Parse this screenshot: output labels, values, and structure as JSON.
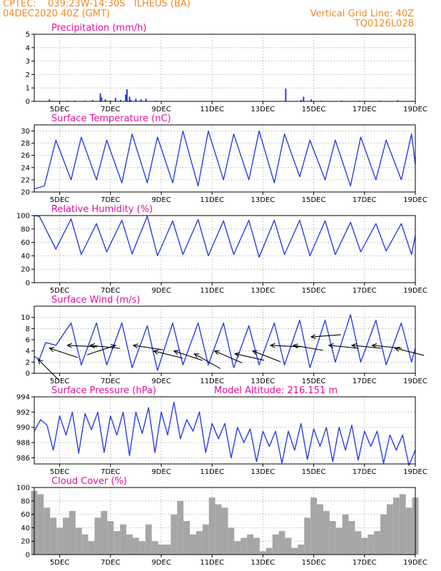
{
  "header": {
    "line1_left": "CPTEC:    039:23W-14:30S   ILHEUS (BA)",
    "line2_left": "04DEC2020 40Z (GMT)",
    "line1_right": "Vertical Grid Line: 40Z",
    "line2_right": "TQ0126L028"
  },
  "colors": {
    "header": "#f08a24",
    "title": "#e0109c",
    "line": "#2b3fe0",
    "cloud": "#a6a6a6",
    "wind_arrow": "#000000"
  },
  "x_axis": {
    "unit": "day of December 2020",
    "range": [
      4.0,
      19.0
    ],
    "tick_values": [
      5,
      7,
      9,
      11,
      13,
      15,
      17,
      19
    ],
    "tick_labels": [
      "5DEC",
      "7DEC",
      "9DEC",
      "11DEC",
      "13DEC",
      "15DEC",
      "17DEC",
      "19DEC"
    ]
  },
  "chart_data": [
    {
      "id": "precip",
      "type": "bar",
      "title": "Precipitation (mm/h)",
      "ylim": [
        0,
        5
      ],
      "yticks": [
        0,
        1,
        2,
        3,
        4,
        5
      ],
      "x": [
        4.6,
        5.3,
        5.6,
        6.0,
        6.3,
        6.6,
        6.65,
        6.8,
        7.0,
        7.2,
        7.4,
        7.6,
        7.65,
        7.75,
        7.8,
        8.0,
        8.2,
        8.4,
        8.8,
        13.9,
        14.5,
        14.6,
        14.9,
        15.3,
        16.1,
        16.8,
        17.6,
        18.3
      ],
      "values": [
        0.15,
        0.05,
        0.06,
        0.05,
        0.1,
        0.6,
        0.3,
        0.15,
        0.05,
        0.25,
        0.1,
        0.5,
        0.9,
        0.35,
        0.1,
        0.2,
        0.15,
        0.2,
        0.05,
        0.95,
        0.1,
        0.35,
        0.15,
        0.05,
        0.05,
        0.05,
        0.05,
        0.08
      ]
    },
    {
      "id": "temp",
      "type": "line",
      "title": "Surface Temperature (nC)",
      "ylim": [
        20,
        31
      ],
      "yticks": [
        20,
        22,
        24,
        26,
        28,
        30
      ],
      "series": [
        {
          "x": [
            4.0,
            4.4,
            4.85,
            5.45,
            5.85,
            6.45,
            6.85,
            7.45,
            7.85,
            8.45,
            8.85,
            9.45,
            9.85,
            10.45,
            10.85,
            11.45,
            11.85,
            12.45,
            12.85,
            13.45,
            13.85,
            14.45,
            14.85,
            15.45,
            15.85,
            16.45,
            16.85,
            17.45,
            17.85,
            18.45,
            18.85,
            19.0
          ],
          "values": [
            20.5,
            21.0,
            28.5,
            22.0,
            29.0,
            22.0,
            28.5,
            21.5,
            29.5,
            21.5,
            29.0,
            21.5,
            30.0,
            21.0,
            30.0,
            22.0,
            29.5,
            22.0,
            30.0,
            21.5,
            29.5,
            22.5,
            28.5,
            22.0,
            28.5,
            21.0,
            29.0,
            22.0,
            28.5,
            22.0,
            29.5,
            24.5
          ]
        }
      ]
    },
    {
      "id": "rh",
      "type": "line",
      "title": "Relative Humidity (%)",
      "ylim": [
        0,
        100
      ],
      "yticks": [
        0,
        20,
        40,
        60,
        80,
        100
      ],
      "series": [
        {
          "x": [
            4.0,
            4.2,
            4.85,
            5.45,
            5.85,
            6.45,
            6.85,
            7.45,
            7.85,
            8.45,
            8.85,
            9.45,
            9.85,
            10.45,
            10.85,
            11.45,
            11.85,
            12.45,
            12.85,
            13.45,
            13.85,
            14.45,
            14.85,
            15.45,
            15.85,
            16.45,
            16.85,
            17.45,
            17.85,
            18.45,
            18.85,
            19.0
          ],
          "values": [
            100,
            99,
            50,
            95,
            42,
            88,
            46,
            93,
            43,
            99,
            40,
            92,
            42,
            94,
            40,
            92,
            42,
            93,
            38,
            93,
            42,
            93,
            40,
            92,
            42,
            90,
            46,
            88,
            47,
            88,
            42,
            70
          ]
        }
      ]
    },
    {
      "id": "wind",
      "type": "line",
      "title": "Surface Wind (m/s)",
      "ylim": [
        0,
        12
      ],
      "yticks": [
        0,
        2,
        4,
        6,
        8,
        10
      ],
      "series": [
        {
          "x": [
            4.0,
            4.2,
            4.45,
            4.85,
            5.45,
            5.85,
            6.45,
            6.85,
            7.45,
            7.85,
            8.45,
            8.85,
            9.45,
            9.85,
            10.45,
            10.85,
            11.45,
            11.85,
            12.45,
            12.85,
            13.45,
            13.85,
            14.45,
            14.85,
            15.45,
            15.85,
            16.45,
            16.85,
            17.45,
            17.85,
            18.45,
            18.85,
            19.0
          ],
          "values": [
            3.0,
            2.5,
            5.5,
            5.0,
            9.0,
            1.5,
            9.0,
            1.5,
            9.0,
            1.0,
            8.5,
            0.5,
            9.0,
            1.5,
            9.0,
            1.5,
            9.0,
            1.0,
            8.5,
            1.5,
            9.0,
            1.5,
            9.5,
            1.0,
            9.5,
            2.0,
            10.5,
            2.0,
            9.5,
            1.5,
            9.0,
            2.0,
            4.5
          ]
        }
      ],
      "wind_vectors": [
        {
          "x": 4.15,
          "speed": 2.5,
          "dx": 0.35,
          "dy": 14
        },
        {
          "x": 4.6,
          "speed": 4.5,
          "dx": 0.9,
          "dy": 12
        },
        {
          "x": 5.3,
          "speed": 5.0,
          "dx": 1.0,
          "dy": 2
        },
        {
          "x": 6.2,
          "speed": 5.0,
          "dx": 1.0,
          "dy": 4
        },
        {
          "x": 7.2,
          "speed": 5.0,
          "dx": -0.9,
          "dy": 12
        },
        {
          "x": 7.9,
          "speed": 5.0,
          "dx": 1.0,
          "dy": 6
        },
        {
          "x": 8.7,
          "speed": 4.0,
          "dx": 0.8,
          "dy": 8
        },
        {
          "x": 9.5,
          "speed": 4.0,
          "dx": 0.9,
          "dy": 12
        },
        {
          "x": 10.3,
          "speed": 3.5,
          "dx": 0.7,
          "dy": 16
        },
        {
          "x": 11.1,
          "speed": 4.0,
          "dx": 0.8,
          "dy": 14
        },
        {
          "x": 11.9,
          "speed": 3.5,
          "dx": 0.9,
          "dy": 8
        },
        {
          "x": 12.6,
          "speed": 4.0,
          "dx": 0.9,
          "dy": 14
        },
        {
          "x": 13.3,
          "speed": 5.0,
          "dx": 1.0,
          "dy": 2
        },
        {
          "x": 14.2,
          "speed": 5.0,
          "dx": 0.9,
          "dy": 6
        },
        {
          "x": 14.9,
          "speed": 6.5,
          "dx": 1.0,
          "dy": -3
        },
        {
          "x": 15.6,
          "speed": 5.0,
          "dx": 1.0,
          "dy": 4
        },
        {
          "x": 16.5,
          "speed": 5.0,
          "dx": 1.0,
          "dy": 4
        },
        {
          "x": 17.3,
          "speed": 5.0,
          "dx": 1.0,
          "dy": 4
        },
        {
          "x": 18.2,
          "speed": 4.5,
          "dx": 1.0,
          "dy": 10
        }
      ]
    },
    {
      "id": "press",
      "type": "line",
      "title": "Surface Pressure (hPa)",
      "annotation": "Model Altitude: 216.151 m",
      "ylim": [
        985.2,
        994
      ],
      "yticks": [
        986,
        988,
        990,
        992,
        994
      ],
      "series": [
        {
          "x": [
            4.0,
            4.25,
            4.5,
            4.75,
            5.0,
            5.25,
            5.5,
            5.75,
            6.0,
            6.25,
            6.5,
            6.75,
            7.0,
            7.25,
            7.5,
            7.75,
            8.0,
            8.25,
            8.5,
            8.75,
            9.0,
            9.25,
            9.5,
            9.75,
            10.0,
            10.25,
            10.5,
            10.75,
            11.0,
            11.25,
            11.5,
            11.75,
            12.0,
            12.25,
            12.5,
            12.75,
            13.0,
            13.25,
            13.5,
            13.75,
            14.0,
            14.25,
            14.5,
            14.75,
            15.0,
            15.25,
            15.5,
            15.75,
            16.0,
            16.25,
            16.5,
            16.75,
            17.0,
            17.25,
            17.5,
            17.75,
            18.0,
            18.25,
            18.5,
            18.75,
            19.0
          ],
          "values": [
            989.5,
            991.0,
            990.3,
            987.0,
            991.5,
            989.0,
            992.0,
            986.6,
            991.8,
            989.7,
            992.0,
            986.7,
            991.5,
            989.0,
            992.0,
            986.3,
            992.0,
            989.2,
            992.6,
            986.7,
            992.0,
            989.0,
            993.3,
            988.5,
            991.0,
            989.5,
            992.0,
            986.7,
            990.5,
            988.5,
            990.5,
            986.0,
            990.0,
            988.0,
            989.8,
            985.5,
            989.5,
            987.5,
            989.5,
            985.3,
            989.5,
            987.0,
            990.5,
            985.8,
            989.8,
            987.5,
            990.0,
            985.5,
            990.0,
            987.0,
            990.3,
            985.7,
            989.5,
            987.5,
            989.5,
            985.3,
            989.0,
            987.0,
            989.0,
            985.0,
            987.0
          ]
        }
      ]
    },
    {
      "id": "cloud",
      "type": "bar",
      "title": "Cloud Cover (%)",
      "ylim": [
        0,
        100
      ],
      "yticks": [
        0,
        20,
        40,
        60,
        80,
        100
      ],
      "x": [
        4.0,
        4.25,
        4.5,
        4.75,
        5.0,
        5.25,
        5.5,
        5.75,
        6.0,
        6.25,
        6.5,
        6.75,
        7.0,
        7.25,
        7.5,
        7.75,
        8.0,
        8.25,
        8.5,
        8.75,
        9.0,
        9.25,
        9.5,
        9.75,
        10.0,
        10.25,
        10.5,
        10.75,
        11.0,
        11.25,
        11.5,
        11.75,
        12.0,
        12.25,
        12.5,
        12.75,
        13.0,
        13.25,
        13.5,
        13.75,
        14.0,
        14.25,
        14.5,
        14.75,
        15.0,
        15.25,
        15.5,
        15.75,
        16.0,
        16.25,
        16.5,
        16.75,
        17.0,
        17.25,
        17.5,
        17.75,
        18.0,
        18.25,
        18.5,
        18.75,
        19.0
      ],
      "values": [
        95,
        90,
        70,
        55,
        40,
        55,
        65,
        40,
        30,
        20,
        55,
        65,
        50,
        35,
        45,
        30,
        25,
        20,
        45,
        20,
        15,
        15,
        60,
        80,
        50,
        30,
        35,
        45,
        85,
        75,
        70,
        40,
        20,
        25,
        30,
        25,
        5,
        10,
        30,
        35,
        25,
        10,
        15,
        55,
        85,
        75,
        65,
        50,
        40,
        60,
        50,
        35,
        25,
        30,
        35,
        60,
        75,
        85,
        90,
        70,
        85
      ]
    }
  ]
}
